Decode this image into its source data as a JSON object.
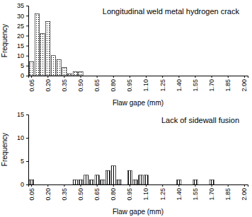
{
  "chart_data": [
    {
      "type": "bar",
      "title": "Longitudinal weld metal hydrogen crack",
      "x_label": "Flaw gape (mm)",
      "y_label": "Frequency",
      "categories": [
        "0.05",
        null,
        null,
        "0.20",
        null,
        null,
        "0.35",
        null,
        null,
        "0.50",
        null,
        null,
        "0.65",
        null,
        null,
        "0.80",
        null,
        null,
        "0.95",
        null,
        null,
        "1.10",
        null,
        null,
        "1.25",
        null,
        null,
        "1.40",
        null,
        null,
        "1.55",
        null,
        null,
        "1.70",
        null,
        null,
        "1.85",
        null,
        null,
        "2.00"
      ],
      "values": [
        7,
        31,
        21,
        27,
        10,
        8,
        4,
        1,
        2,
        2,
        0,
        0,
        0,
        0,
        0,
        0,
        0,
        0,
        0,
        0,
        0,
        0,
        0,
        0,
        0,
        0,
        0,
        0,
        0,
        0,
        0,
        0,
        0,
        0,
        0,
        0,
        0,
        0,
        0,
        0
      ],
      "color": "#000000",
      "ylim": [
        0,
        35
      ],
      "yticks": [
        0,
        5,
        10,
        15,
        20,
        25,
        30,
        35
      ]
    },
    {
      "type": "bar",
      "title": "Lack of sidewall fusion",
      "x_label": "Flaw gape (mm)",
      "y_label": "Frequency",
      "categories": [
        "0.05",
        null,
        null,
        "0.20",
        null,
        null,
        "0.35",
        null,
        null,
        "0.50",
        null,
        null,
        "0.65",
        null,
        null,
        "0.80",
        null,
        null,
        "0.95",
        null,
        null,
        "1.10",
        null,
        null,
        "1.25",
        null,
        null,
        "1.40",
        null,
        null,
        "1.55",
        null,
        null,
        "1.70",
        null,
        null,
        "1.85",
        null,
        null,
        "2.00"
      ],
      "values": [
        1,
        0,
        0,
        0,
        0,
        0,
        0,
        0,
        1,
        1,
        2,
        1,
        2,
        1,
        3,
        4,
        1,
        0,
        3,
        1,
        2,
        2,
        0,
        0,
        0,
        0,
        0,
        1,
        0,
        0,
        1,
        0,
        0,
        1,
        0,
        0,
        0,
        0,
        0,
        0
      ],
      "color": "#000000",
      "ylim": [
        0,
        15
      ],
      "yticks": [
        0,
        5,
        10,
        15
      ]
    }
  ]
}
